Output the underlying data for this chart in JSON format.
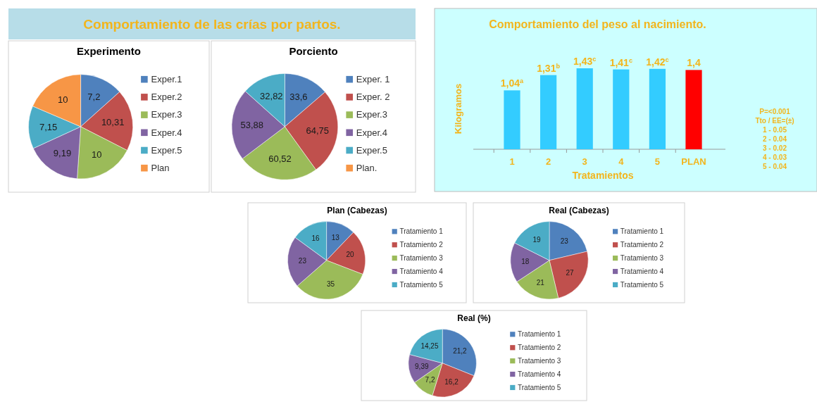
{
  "chart_data": [
    {
      "type": "other",
      "title": "Comportamiento de las crías por partos."
    },
    {
      "type": "pie",
      "title": "Experimento",
      "categories": [
        "Exper.1",
        "Exper.2",
        "Exper.3",
        "Exper.4",
        "Exper.5",
        "Plan"
      ],
      "values": [
        7.2,
        10.31,
        10,
        9.19,
        7.15,
        10
      ],
      "value_labels": [
        "7,2",
        "10,31",
        "10",
        "9,19",
        "7,15",
        "10"
      ],
      "colors": [
        "#4f81bd",
        "#c0504d",
        "#9bbb59",
        "#8064a2",
        "#4bacc6",
        "#f79646"
      ],
      "legend": "right"
    },
    {
      "type": "pie",
      "title": "Porciento",
      "categories": [
        "Exper. 1",
        "Exper. 2",
        "Exper.3",
        "Exper.4",
        "Exper.5",
        "Plan."
      ],
      "values": [
        33.6,
        64.75,
        60.52,
        53.88,
        32.82,
        null
      ],
      "value_labels": [
        "33,6",
        "64,75",
        "60,52",
        "53,88",
        "32,82",
        null
      ],
      "colors": [
        "#4f81bd",
        "#c0504d",
        "#9bbb59",
        "#8064a2",
        "#4bacc6",
        "#f79646"
      ],
      "legend": "right"
    },
    {
      "type": "bar",
      "title": "Comportamiento del peso al nacimiento.",
      "xlabel": "Tratamientos",
      "ylabel": "Kilogramos",
      "categories": [
        "1",
        "2",
        "3",
        "4",
        "5",
        "PLAN"
      ],
      "values": [
        1.04,
        1.31,
        1.43,
        1.41,
        1.42,
        1.4
      ],
      "value_labels": [
        "1,04$^{a}$",
        "1,31$^{b}$",
        "1,43$^{c}$",
        "1,41$^{c}$",
        "1,42$^{c}$",
        "1,4"
      ],
      "colors": [
        "#33ccff",
        "#33ccff",
        "#33ccff",
        "#33ccff",
        "#33ccff",
        "#ff0000"
      ],
      "annotations": [
        "P=<0.001",
        "Tto / EE=(±)",
        "1 -  0.05",
        "2 -  0.04",
        "3 -  0.02",
        "4 -  0.03",
        "5 -  0.04"
      ]
    },
    {
      "type": "pie",
      "title": "Plan  (Cabezas)",
      "categories": [
        "Tratamiento 1",
        "Tratamiento 2",
        "Tratamiento 3",
        "Tratamiento 4",
        "Tratamiento 5"
      ],
      "values": [
        13,
        20,
        35,
        23,
        16
      ],
      "data_labels": true,
      "colors": [
        "#4f81bd",
        "#c0504d",
        "#9bbb59",
        "#8064a2",
        "#4bacc6"
      ],
      "legend": "right"
    },
    {
      "type": "pie",
      "title": "Real (Cabezas)",
      "categories": [
        "Tratamiento 1",
        "Tratamiento 2",
        "Tratamiento 3",
        "Tratamiento 4",
        "Tratamiento 5"
      ],
      "values": [
        23,
        27,
        21,
        18,
        19
      ],
      "data_labels": true,
      "colors": [
        "#4f81bd",
        "#c0504d",
        "#9bbb59",
        "#8064a2",
        "#4bacc6"
      ],
      "legend": "right"
    },
    {
      "type": "pie",
      "title": "Real (%)",
      "categories": [
        "Tratamiento 1",
        "Tratamiento 2",
        "Tratamiento 3",
        "Tratamiento 4",
        "Tratamiento 5"
      ],
      "values": [
        21.2,
        16.2,
        7.2,
        9.39,
        14.25
      ],
      "value_labels": [
        "21,2",
        "16,2",
        "7,2",
        "9,39",
        "14,25"
      ],
      "colors": [
        "#4f81bd",
        "#c0504d",
        "#9bbb59",
        "#8064a2",
        "#4bacc6"
      ],
      "legend": "right"
    }
  ]
}
